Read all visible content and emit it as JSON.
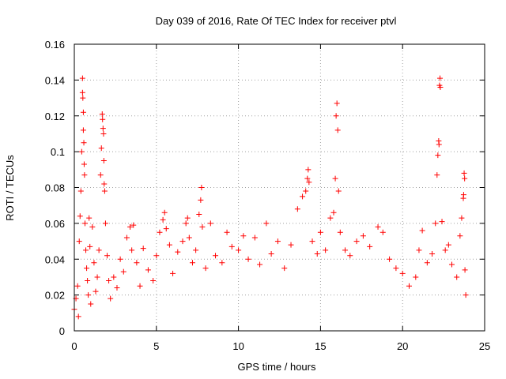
{
  "chart_data": {
    "type": "scatter",
    "title": "Day 039 of 2016, Rate Of TEC Index for receiver ptvl",
    "xlabel": "GPS time / hours",
    "ylabel": "ROTI / TECUs",
    "xlim": [
      0,
      25
    ],
    "ylim": [
      0,
      0.16
    ],
    "xticks": [
      0,
      5,
      10,
      15,
      20,
      25
    ],
    "xtick_labels": [
      "0",
      "5",
      "10",
      "15",
      "20",
      "25"
    ],
    "yticks": [
      0,
      0.02,
      0.04,
      0.06,
      0.08,
      0.1,
      0.12,
      0.14,
      0.16
    ],
    "ytick_labels": [
      "0",
      "0.02",
      "0.04",
      "0.06",
      "0.08",
      "0.1",
      "0.12",
      "0.14",
      "0.16"
    ],
    "grid": true,
    "marker": "plus",
    "series": [
      {
        "name": "ROTI",
        "color": "#ff0000",
        "points": [
          [
            0.0,
            0.012
          ],
          [
            0.1,
            0.018
          ],
          [
            0.2,
            0.025
          ],
          [
            0.25,
            0.008
          ],
          [
            0.3,
            0.05
          ],
          [
            0.35,
            0.064
          ],
          [
            0.4,
            0.078
          ],
          [
            0.45,
            0.1
          ],
          [
            0.5,
            0.141
          ],
          [
            0.5,
            0.133
          ],
          [
            0.52,
            0.13
          ],
          [
            0.55,
            0.122
          ],
          [
            0.55,
            0.112
          ],
          [
            0.58,
            0.105
          ],
          [
            0.6,
            0.093
          ],
          [
            0.62,
            0.087
          ],
          [
            0.65,
            0.06
          ],
          [
            0.7,
            0.045
          ],
          [
            0.75,
            0.035
          ],
          [
            0.8,
            0.028
          ],
          [
            0.85,
            0.02
          ],
          [
            0.9,
            0.063
          ],
          [
            0.95,
            0.047
          ],
          [
            1.0,
            0.015
          ],
          [
            1.1,
            0.058
          ],
          [
            1.2,
            0.038
          ],
          [
            1.3,
            0.022
          ],
          [
            1.4,
            0.03
          ],
          [
            1.5,
            0.045
          ],
          [
            1.6,
            0.087
          ],
          [
            1.65,
            0.102
          ],
          [
            1.7,
            0.121
          ],
          [
            1.72,
            0.118
          ],
          [
            1.75,
            0.113
          ],
          [
            1.78,
            0.11
          ],
          [
            1.8,
            0.095
          ],
          [
            1.82,
            0.082
          ],
          [
            1.85,
            0.078
          ],
          [
            1.9,
            0.06
          ],
          [
            2.0,
            0.042
          ],
          [
            2.1,
            0.028
          ],
          [
            2.2,
            0.018
          ],
          [
            2.4,
            0.03
          ],
          [
            2.6,
            0.024
          ],
          [
            2.8,
            0.04
          ],
          [
            3.0,
            0.033
          ],
          [
            3.2,
            0.052
          ],
          [
            3.4,
            0.058
          ],
          [
            3.5,
            0.045
          ],
          [
            3.6,
            0.059
          ],
          [
            3.8,
            0.038
          ],
          [
            4.0,
            0.025
          ],
          [
            4.2,
            0.046
          ],
          [
            4.5,
            0.034
          ],
          [
            4.8,
            0.028
          ],
          [
            5.0,
            0.042
          ],
          [
            5.2,
            0.055
          ],
          [
            5.4,
            0.062
          ],
          [
            5.5,
            0.066
          ],
          [
            5.6,
            0.057
          ],
          [
            5.8,
            0.048
          ],
          [
            6.0,
            0.032
          ],
          [
            6.3,
            0.044
          ],
          [
            6.6,
            0.05
          ],
          [
            6.8,
            0.06
          ],
          [
            6.9,
            0.063
          ],
          [
            7.0,
            0.052
          ],
          [
            7.2,
            0.038
          ],
          [
            7.4,
            0.045
          ],
          [
            7.6,
            0.065
          ],
          [
            7.7,
            0.073
          ],
          [
            7.75,
            0.08
          ],
          [
            7.8,
            0.058
          ],
          [
            8.0,
            0.035
          ],
          [
            8.3,
            0.06
          ],
          [
            8.6,
            0.042
          ],
          [
            9.0,
            0.038
          ],
          [
            9.3,
            0.055
          ],
          [
            9.6,
            0.047
          ],
          [
            10.0,
            0.045
          ],
          [
            10.3,
            0.053
          ],
          [
            10.6,
            0.04
          ],
          [
            11.0,
            0.052
          ],
          [
            11.3,
            0.037
          ],
          [
            11.7,
            0.06
          ],
          [
            12.0,
            0.043
          ],
          [
            12.4,
            0.05
          ],
          [
            12.8,
            0.035
          ],
          [
            13.2,
            0.048
          ],
          [
            13.6,
            0.068
          ],
          [
            13.9,
            0.075
          ],
          [
            14.1,
            0.078
          ],
          [
            14.2,
            0.085
          ],
          [
            14.25,
            0.09
          ],
          [
            14.3,
            0.083
          ],
          [
            14.5,
            0.05
          ],
          [
            14.8,
            0.043
          ],
          [
            15.0,
            0.055
          ],
          [
            15.3,
            0.045
          ],
          [
            15.6,
            0.063
          ],
          [
            15.8,
            0.066
          ],
          [
            15.9,
            0.085
          ],
          [
            15.95,
            0.12
          ],
          [
            16.0,
            0.127
          ],
          [
            16.05,
            0.112
          ],
          [
            16.1,
            0.078
          ],
          [
            16.2,
            0.055
          ],
          [
            16.5,
            0.045
          ],
          [
            16.8,
            0.042
          ],
          [
            17.2,
            0.05
          ],
          [
            17.6,
            0.053
          ],
          [
            18.0,
            0.047
          ],
          [
            18.5,
            0.058
          ],
          [
            18.8,
            0.055
          ],
          [
            19.2,
            0.04
          ],
          [
            19.6,
            0.035
          ],
          [
            20.0,
            0.032
          ],
          [
            20.4,
            0.025
          ],
          [
            20.8,
            0.03
          ],
          [
            21.0,
            0.045
          ],
          [
            21.2,
            0.056
          ],
          [
            21.5,
            0.038
          ],
          [
            21.8,
            0.043
          ],
          [
            22.0,
            0.06
          ],
          [
            22.1,
            0.087
          ],
          [
            22.15,
            0.098
          ],
          [
            22.2,
            0.106
          ],
          [
            22.22,
            0.104
          ],
          [
            22.25,
            0.137
          ],
          [
            22.28,
            0.141
          ],
          [
            22.3,
            0.136
          ],
          [
            22.4,
            0.061
          ],
          [
            22.6,
            0.045
          ],
          [
            22.8,
            0.048
          ],
          [
            23.0,
            0.037
          ],
          [
            23.3,
            0.03
          ],
          [
            23.5,
            0.053
          ],
          [
            23.6,
            0.063
          ],
          [
            23.7,
            0.074
          ],
          [
            23.72,
            0.076
          ],
          [
            23.75,
            0.088
          ],
          [
            23.78,
            0.085
          ],
          [
            23.8,
            0.034
          ],
          [
            23.85,
            0.02
          ]
        ]
      }
    ]
  }
}
